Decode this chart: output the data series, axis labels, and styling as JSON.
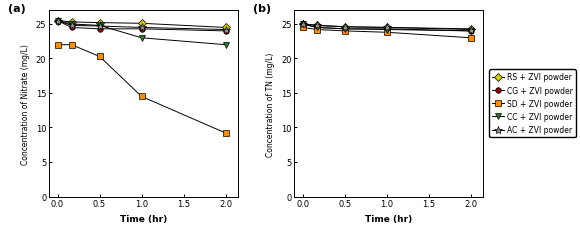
{
  "time_a": [
    0.0,
    0.167,
    0.5,
    1.0,
    2.0
  ],
  "time_b": [
    0.0,
    0.167,
    0.5,
    1.0,
    2.0
  ],
  "series_a": {
    "RS": [
      25.5,
      25.3,
      25.2,
      25.1,
      24.5
    ],
    "CG": [
      25.5,
      24.5,
      24.3,
      24.3,
      24.0
    ],
    "SD": [
      22.0,
      22.0,
      20.3,
      14.5,
      9.2
    ],
    "CC": [
      25.5,
      25.0,
      24.8,
      23.0,
      22.0
    ],
    "AC": [
      25.5,
      24.8,
      24.7,
      24.5,
      24.2
    ]
  },
  "series_b": {
    "RS": [
      25.0,
      24.8,
      24.6,
      24.5,
      24.3
    ],
    "CG": [
      25.0,
      24.5,
      24.3,
      24.3,
      24.0
    ],
    "SD": [
      24.5,
      24.2,
      24.0,
      23.8,
      23.0
    ],
    "CC": [
      25.0,
      24.5,
      24.3,
      24.2,
      24.0
    ],
    "AC": [
      25.0,
      24.8,
      24.6,
      24.5,
      24.2
    ]
  },
  "colors": {
    "RS": "#d4d000",
    "CG": "#8b0000",
    "SD": "#ff8c00",
    "CC": "#2a7a2a",
    "AC": "#909090"
  },
  "markers": {
    "RS": "D",
    "CG": "o",
    "SD": "s",
    "CC": "v",
    "AC": "*"
  },
  "markersizes": {
    "RS": 4,
    "CG": 4,
    "SD": 4,
    "CC": 4,
    "AC": 6
  },
  "labels": {
    "RS": "RS + ZVI powder",
    "CG": "CG + ZVI powder",
    "SD": "SD + ZVI powder",
    "CC": "CC + ZVI powder",
    "AC": "AC + ZVI powder"
  },
  "xlabel": "Time (hr)",
  "ylabel_a": "Concentration of Nitrate (mg/L)",
  "ylabel_b": "Concentration of TN (mg/L)",
  "title_a": "(a)",
  "title_b": "(b)",
  "xlim": [
    -0.1,
    2.15
  ],
  "ylim": [
    0,
    27
  ],
  "yticks": [
    0,
    5,
    10,
    15,
    20,
    25
  ],
  "xticks": [
    0.0,
    0.5,
    1.0,
    1.5,
    2.0
  ],
  "xtick_labels": [
    "0.0",
    "0.5",
    "1.0",
    "1.5",
    "2.0"
  ],
  "line_color": "#000000",
  "line_width": 0.7
}
